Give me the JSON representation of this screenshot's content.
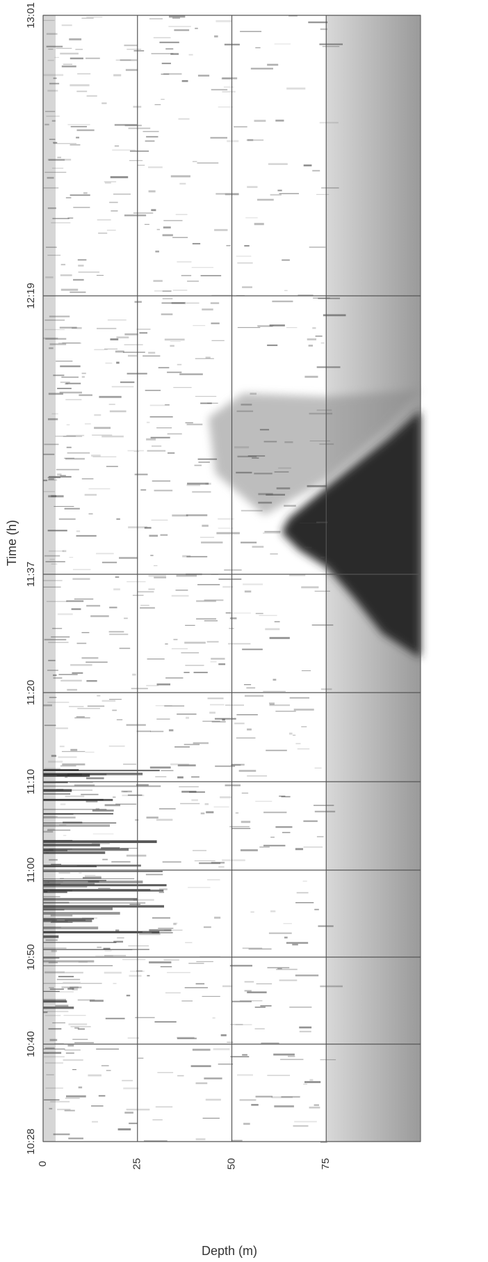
{
  "chart_data": {
    "type": "echogram",
    "x_label": "Depth (m)",
    "y_label": "Time (h)",
    "xlim": [
      0,
      100
    ],
    "xticks": [
      0,
      25,
      50,
      75
    ],
    "y_categories": [
      "13:01",
      "12:19",
      "11:37",
      "11:20",
      "11:10",
      "11:00",
      "10:50",
      "10:40",
      "10:28"
    ],
    "grid": true
  }
}
